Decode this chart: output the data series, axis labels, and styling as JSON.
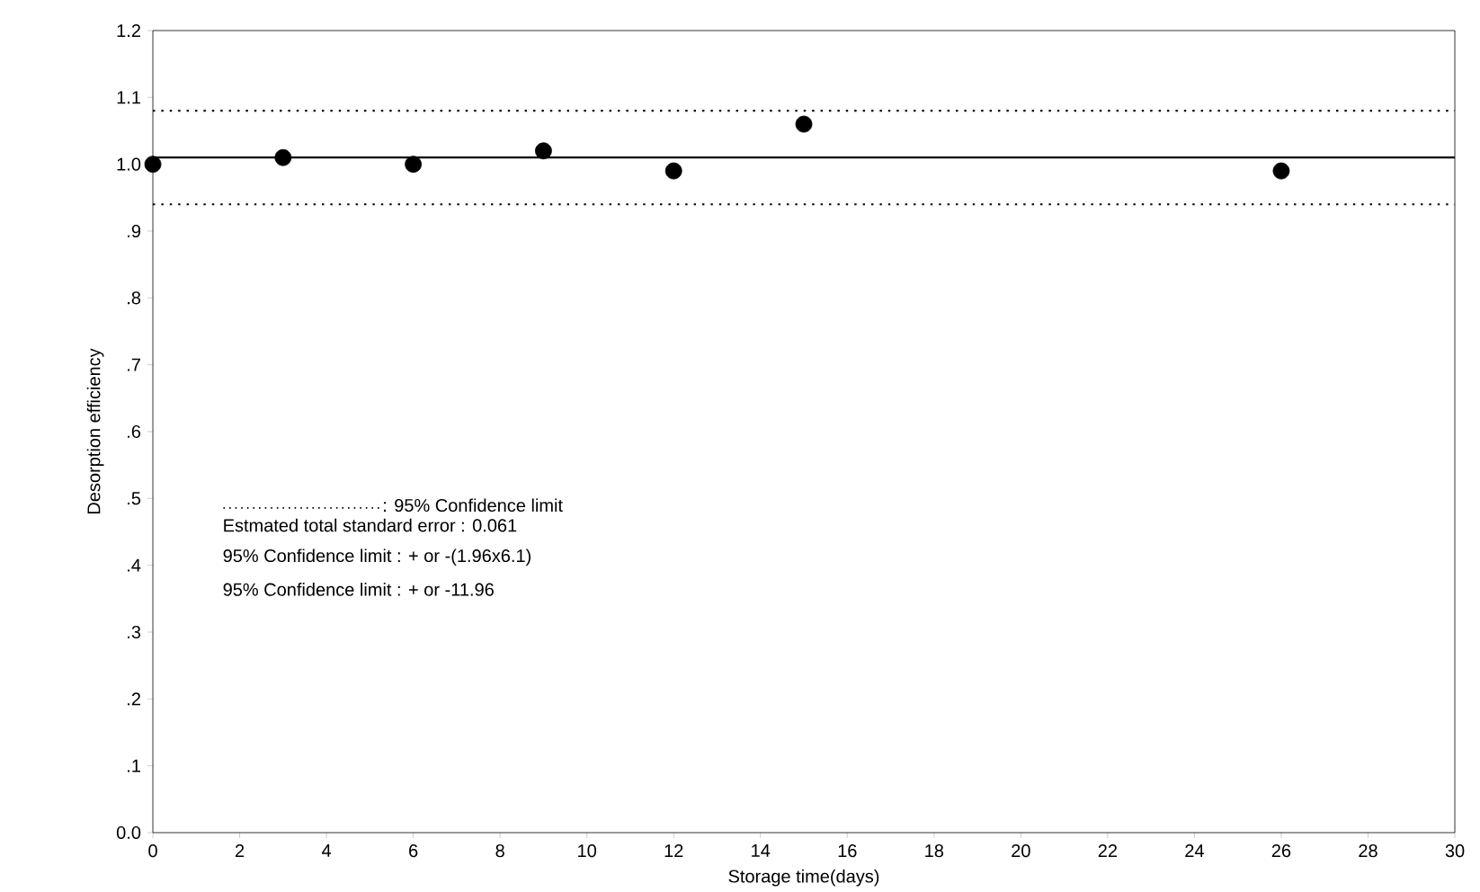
{
  "chart_data": {
    "type": "scatter",
    "xlabel": "Storage time(days)",
    "ylabel": "Desorption efficiency",
    "x": [
      0,
      3,
      6,
      9,
      12,
      15,
      26
    ],
    "series": [
      {
        "color": "#000000",
        "values": [
          1.0,
          1.01,
          1.0,
          1.02,
          0.99,
          1.06,
          0.99
        ]
      }
    ],
    "marker": "circle",
    "grid": false,
    "xlim": [
      0,
      30
    ],
    "xticks": [
      0,
      2,
      4,
      6,
      8,
      10,
      12,
      14,
      16,
      18,
      20,
      22,
      24,
      26,
      28,
      30
    ],
    "ylim": [
      0,
      1.2
    ],
    "yticks": [
      {
        "value": 0,
        "label": "0.0"
      },
      {
        "value": 0.1,
        "label": ".1"
      },
      {
        "value": 0.2,
        "label": ".2"
      },
      {
        "value": 0.3,
        "label": ".3"
      },
      {
        "value": 0.4,
        "label": ".4"
      },
      {
        "value": 0.5,
        "label": ".5"
      },
      {
        "value": 0.6,
        "label": ".6"
      },
      {
        "value": 0.7,
        "label": ".7"
      },
      {
        "value": 0.8,
        "label": ".8"
      },
      {
        "value": 0.9,
        "label": ".9"
      },
      {
        "value": 1.0,
        "label": "1.0"
      },
      {
        "value": 1.1,
        "label": "1.1"
      },
      {
        "value": 1.2,
        "label": "1.2"
      }
    ],
    "ref_lines": [
      {
        "axis": "y",
        "value": 1.01,
        "line_style": "solid",
        "color": "#000000"
      },
      {
        "axis": "y",
        "value": 1.08,
        "line_style": "dotted",
        "color": "#000000"
      },
      {
        "axis": "y",
        "value": 0.94,
        "line_style": "dotted",
        "color": "#000000"
      }
    ],
    "annotations": [
      ": 95% Confidence limit",
      "Estmated total standard error : 0.061",
      "95% Confidence limit : + or -(1.96x6.1)",
      "95% Confidence limit : + or -11.96"
    ]
  }
}
